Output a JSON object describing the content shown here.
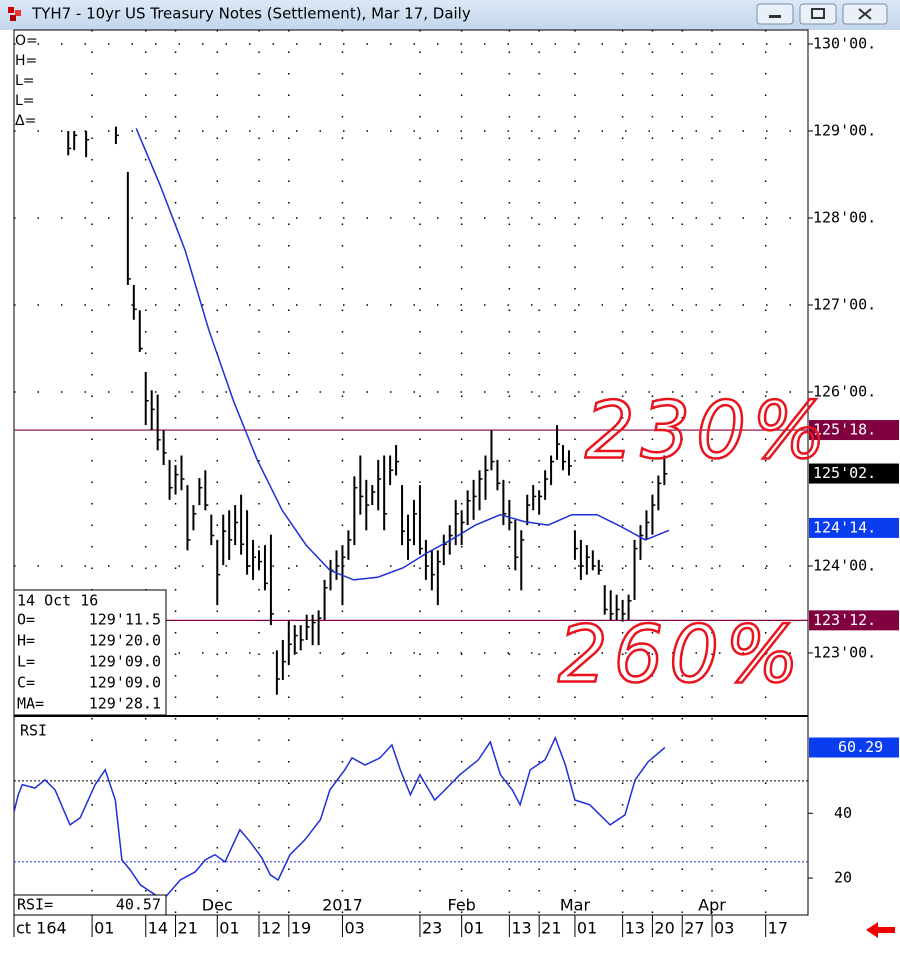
{
  "chart_data": [
    {
      "type": "ohlc",
      "title": "TYH7 - 10yr US Treasury Notes (Settlement), Mar 17, Daily",
      "color": "#000000",
      "x": [
        8,
        9,
        11,
        16,
        18,
        19,
        20,
        21,
        22,
        23,
        24,
        25,
        26,
        27,
        28,
        29,
        30,
        31,
        32,
        33,
        34,
        35,
        36,
        37,
        38,
        39,
        40,
        41,
        42,
        43,
        44,
        45,
        46,
        47,
        48,
        49,
        50,
        51,
        52,
        53,
        54,
        55,
        56,
        57,
        58,
        59,
        60,
        61,
        62,
        63,
        64,
        65,
        66,
        67,
        68,
        69,
        70,
        71,
        72,
        73,
        74,
        75,
        76,
        77,
        78,
        79,
        80,
        81,
        82,
        83,
        84,
        85,
        86,
        87,
        88,
        89,
        90,
        91,
        92,
        93,
        94,
        95,
        96,
        97,
        98,
        99,
        100,
        101,
        102,
        103,
        104,
        105,
        106,
        107,
        108
      ],
      "high": [
        129.0,
        129.0,
        129.0,
        129.05,
        128.53,
        127.23,
        126.94,
        126.23,
        126.02,
        125.97,
        125.56,
        125.22,
        125.16,
        125.27,
        124.93,
        124.7,
        125.01,
        125.1,
        124.59,
        124.3,
        124.59,
        124.64,
        124.7,
        124.82,
        124.64,
        124.3,
        124.18,
        124.24,
        124.36,
        123.03,
        123.15,
        123.38,
        123.32,
        123.32,
        123.44,
        123.44,
        123.49,
        123.84,
        124.07,
        124.18,
        124.24,
        124.41,
        125.03,
        125.27,
        124.99,
        124.93,
        125.22,
        125.27,
        125.27,
        125.39,
        124.93,
        124.59,
        124.76,
        124.93,
        124.3,
        124.18,
        124.18,
        124.36,
        124.47,
        124.76,
        124.64,
        124.87,
        124.99,
        125.1,
        125.27,
        125.56,
        125.22,
        124.99,
        124.76,
        124.53,
        124.41,
        124.82,
        124.93,
        124.87,
        125.1,
        125.27,
        125.62,
        125.39,
        125.33,
        124.41,
        124.3,
        124.24,
        124.18,
        124.07,
        123.78,
        123.72,
        123.67,
        123.61,
        123.67,
        124.3,
        124.47,
        124.64,
        124.82,
        125.04,
        125.27
      ],
      "low": [
        128.72,
        128.78,
        128.7,
        128.85,
        127.23,
        126.83,
        126.46,
        125.62,
        125.56,
        125.33,
        125.16,
        124.76,
        124.82,
        124.87,
        124.18,
        124.41,
        124.7,
        124.64,
        124.24,
        123.55,
        124.01,
        124.07,
        124.24,
        124.13,
        123.9,
        123.84,
        123.95,
        123.72,
        123.32,
        122.52,
        122.69,
        122.86,
        122.98,
        123.03,
        123.15,
        123.09,
        123.09,
        123.38,
        123.72,
        123.84,
        123.55,
        124.07,
        124.24,
        124.59,
        124.41,
        124.7,
        124.64,
        124.41,
        124.93,
        125.04,
        124.24,
        124.07,
        124.24,
        124.13,
        123.84,
        123.72,
        123.55,
        124.01,
        124.13,
        124.24,
        124.24,
        124.47,
        124.53,
        124.64,
        124.76,
        125.1,
        124.87,
        124.47,
        124.41,
        123.95,
        123.72,
        124.47,
        124.64,
        124.59,
        124.76,
        124.93,
        125.22,
        125.1,
        125.04,
        124.07,
        123.84,
        123.9,
        123.95,
        123.9,
        123.44,
        123.38,
        123.38,
        123.36,
        123.38,
        123.61,
        124.07,
        124.3,
        124.36,
        124.64,
        124.93
      ],
      "close": [
        128.8,
        128.95,
        128.9,
        128.95,
        127.3,
        126.95,
        126.5,
        125.9,
        125.8,
        125.45,
        125.3,
        124.9,
        125.05,
        125.0,
        124.3,
        124.6,
        124.9,
        124.7,
        124.35,
        123.9,
        124.4,
        124.3,
        124.5,
        124.25,
        124.0,
        124.1,
        124.05,
        123.8,
        123.45,
        122.7,
        122.9,
        123.1,
        123.2,
        123.15,
        123.3,
        123.35,
        123.4,
        123.75,
        123.95,
        124.0,
        124.1,
        124.3,
        124.9,
        124.8,
        124.7,
        124.85,
        125.0,
        124.6,
        125.1,
        125.2,
        124.4,
        124.3,
        124.6,
        124.2,
        124.0,
        123.9,
        124.05,
        124.25,
        124.35,
        124.6,
        124.5,
        124.75,
        124.8,
        125.0,
        125.1,
        125.2,
        124.95,
        124.6,
        124.5,
        124.1,
        124.3,
        124.7,
        124.8,
        124.8,
        125.0,
        125.2,
        125.4,
        125.2,
        125.15,
        124.2,
        124.0,
        124.1,
        124.0,
        123.95,
        123.5,
        123.45,
        123.5,
        123.45,
        123.6,
        124.2,
        124.35,
        124.5,
        124.7,
        124.95,
        125.06
      ],
      "ma": {
        "color": "#1f2fd6",
        "x": [
          19.4,
          23.4,
          27.6,
          31.6,
          35.7,
          39.7,
          43.9,
          47.9,
          51.9,
          55.9,
          59.9,
          64.2,
          68.2,
          72.2,
          76.3,
          80.5,
          84.5,
          88.5,
          92.5,
          96.7,
          100.8,
          104.8,
          108.8
        ],
        "values": [
          129.03,
          128.38,
          127.63,
          126.71,
          125.9,
          125.22,
          124.64,
          124.24,
          123.95,
          123.84,
          123.87,
          123.98,
          124.15,
          124.3,
          124.47,
          124.59,
          124.51,
          124.47,
          124.59,
          124.59,
          124.45,
          124.3,
          124.41
        ]
      },
      "xlim": [
        -1.1,
        132.1
      ],
      "ylim": [
        122.287,
        130.161
      ],
      "yticks": [
        {
          "value": 123,
          "label": "123'00."
        },
        {
          "value": 124,
          "label": "124'00."
        },
        {
          "value": 126,
          "label": "126'00."
        },
        {
          "value": 127,
          "label": "127'00."
        },
        {
          "value": 128,
          "label": "128'00."
        },
        {
          "value": 129,
          "label": "129'00."
        },
        {
          "value": 130,
          "label": "130'00."
        }
      ],
      "xticks": [
        {
          "value": -1.1,
          "label": "ct 164"
        },
        {
          "value": 12,
          "label": "01"
        },
        {
          "value": 21,
          "label": "14"
        },
        {
          "value": 26,
          "label": "21"
        },
        {
          "value": 33,
          "label": "01"
        },
        {
          "value": 40,
          "label": "12"
        },
        {
          "value": 45,
          "label": "19"
        },
        {
          "value": 54,
          "label": "03"
        },
        {
          "value": 67,
          "label": "23"
        },
        {
          "value": 74,
          "label": "01"
        },
        {
          "value": 82,
          "label": "13"
        },
        {
          "value": 87,
          "label": "21"
        },
        {
          "value": 93,
          "label": "01"
        },
        {
          "value": 101,
          "label": "13"
        },
        {
          "value": 106,
          "label": "20"
        },
        {
          "value": 111,
          "label": "27"
        },
        {
          "value": 116,
          "label": "03"
        },
        {
          "value": 125,
          "label": "17"
        }
      ],
      "month_ticks": [
        {
          "value": 33,
          "label": "Dec"
        },
        {
          "value": 54,
          "label": "2017"
        },
        {
          "value": 74,
          "label": "Feb"
        },
        {
          "value": 93,
          "label": "Mar"
        },
        {
          "value": 116,
          "label": "Apr"
        }
      ],
      "grid": true,
      "levels": [
        {
          "value": 125.5625,
          "label": "125'18.",
          "color": "#800040"
        },
        {
          "value": 123.375,
          "label": "123'12.",
          "color": "#800040"
        }
      ],
      "tags": [
        {
          "value": 125.0625,
          "label": "125'02.",
          "color": "#000000"
        },
        {
          "value": 124.4375,
          "label": "124'14.",
          "color": "#0a3cf0"
        }
      ],
      "annotations": [
        {
          "text": "230%",
          "color": "#e8141e"
        },
        {
          "text": "260%",
          "color": "#e8141e"
        }
      ],
      "header_labels": [
        "O=",
        "H=",
        "L=",
        "L=",
        "Δ="
      ],
      "info": {
        "date": "14 Oct 16",
        "rows": [
          {
            "label": "O=",
            "value": "129'11.5"
          },
          {
            "label": "H=",
            "value": "129'20.0"
          },
          {
            "label": "L=",
            "value": "129'09.0"
          },
          {
            "label": "C=",
            "value": "129'09.0"
          },
          {
            "label": "MA=",
            "value": "129'28.1"
          }
        ]
      }
    },
    {
      "type": "line",
      "label": "RSI",
      "color": "#1f2fd6",
      "x": [
        -1.1,
        -0.4,
        0.3,
        2.4,
        4.1,
        5.8,
        8.3,
        10,
        12.5,
        14.2,
        15.9,
        17,
        18.4,
        20.1,
        22.6,
        24.2,
        26.8,
        29.3,
        31,
        32.6,
        34.3,
        36.8,
        38.5,
        40.5,
        41.9,
        43.2,
        45.2,
        47.7,
        50.3,
        51.9,
        54.4,
        55.6,
        57.8,
        60.3,
        62.3,
        63.7,
        65.4,
        67,
        69.5,
        71.2,
        73.7,
        76.8,
        78.8,
        80.5,
        82.5,
        83.8,
        85.5,
        88,
        89.7,
        91.4,
        93,
        95.5,
        98.9,
        101.4,
        103.1,
        105.3,
        108.1
      ],
      "values": [
        40.4,
        45.7,
        48.8,
        47.8,
        50.3,
        47.2,
        36.4,
        38.6,
        48.8,
        53.4,
        44.1,
        25.6,
        22.5,
        17.9,
        14.8,
        13.9,
        19.4,
        21.9,
        25.6,
        27.2,
        25,
        34.9,
        31.2,
        26.2,
        21,
        19.4,
        27.2,
        31.8,
        38,
        47.2,
        53.4,
        57.1,
        54.9,
        57.1,
        61.1,
        53.4,
        45.7,
        51.9,
        44.1,
        47.2,
        51.9,
        56.5,
        62,
        51.9,
        47.2,
        42.6,
        53.4,
        56.5,
        63.3,
        54.9,
        44.1,
        42.6,
        36.4,
        39.5,
        50.3,
        55.9,
        60.29
      ],
      "xlim": [
        -1.1,
        132.1
      ],
      "ylim": [
        8.6,
        69.4
      ],
      "yticks": [
        20,
        40
      ],
      "levels": [
        {
          "value": 50,
          "color": "#000000"
        },
        {
          "value": 25,
          "color": "#1f2fd6"
        }
      ],
      "last_value": 60.29,
      "tag_color": "#0a3cf0",
      "info": {
        "label": "RSI=",
        "value": "40.57"
      }
    }
  ]
}
